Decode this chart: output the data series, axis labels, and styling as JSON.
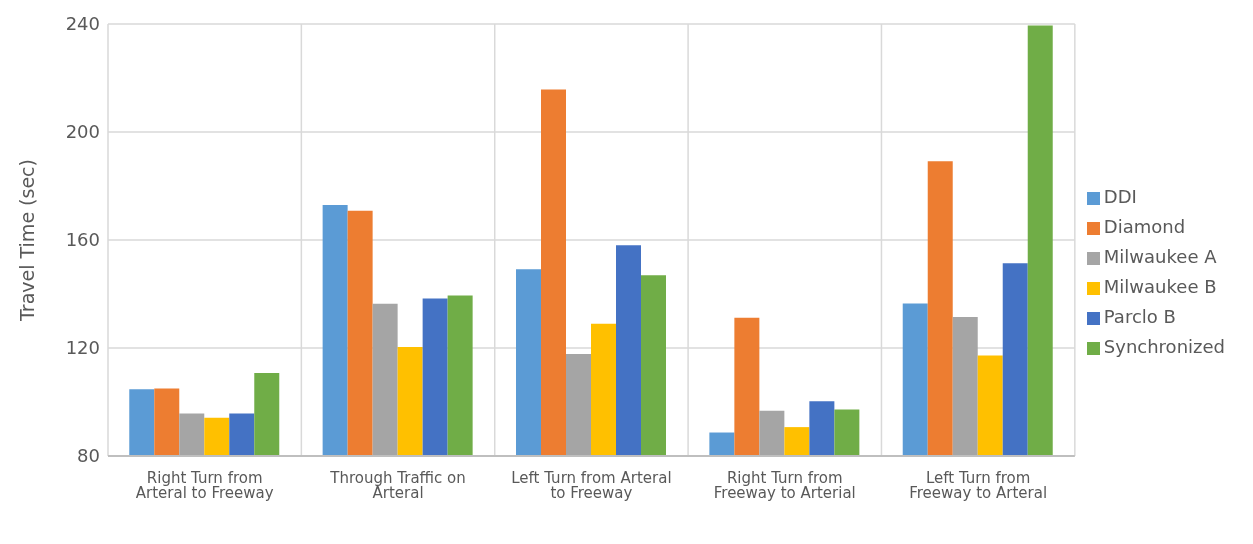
{
  "chart_data": {
    "type": "bar",
    "ylabel": "Travel Time (sec)",
    "categories": [
      "Right Turn from Arteral to Freeway",
      "Through Traffic on Arteral",
      "Left Turn from Arteral to Freeway",
      "Right Turn from Freeway to Arterial",
      "Left Turn from Freeway to Arteral"
    ],
    "series": [
      {
        "name": "DDI",
        "color": "#5b9bd5",
        "values": [
          104.7,
          173,
          149.2,
          88.7,
          136.5
        ]
      },
      {
        "name": "Diamond",
        "color": "#ed7d31",
        "values": [
          105,
          170.8,
          215.7,
          131.2,
          189.2
        ]
      },
      {
        "name": "Milwaukee A",
        "color": "#a5a5a5",
        "values": [
          95.7,
          136.4,
          117.8,
          96.8,
          131.5
        ]
      },
      {
        "name": "Milwaukee B",
        "color": "#ffc000",
        "values": [
          94.2,
          120.4,
          129,
          90.7,
          117.2
        ]
      },
      {
        "name": "Parclo B",
        "color": "#4472c4",
        "values": [
          95.7,
          138.3,
          158.1,
          100.3,
          151.4
        ]
      },
      {
        "name": "Synchronized",
        "color": "#70ad47",
        "values": [
          110.7,
          139.4,
          146.9,
          97.2,
          239.4
        ]
      }
    ],
    "ylim": [
      80,
      240
    ],
    "yticks": [
      80,
      120,
      160,
      200,
      240
    ],
    "grid": true,
    "legend": "right"
  }
}
